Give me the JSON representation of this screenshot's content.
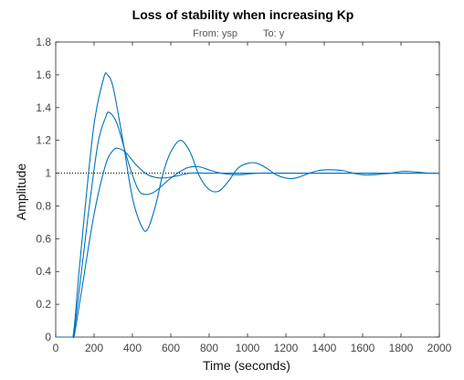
{
  "chart_data": {
    "type": "line",
    "title": "Loss of stability when increasing Kp",
    "subtitle_from": "From: ysp",
    "subtitle_to": "To: y",
    "xlabel": "Time (seconds)",
    "ylabel": "Amplitude",
    "xlim": [
      0,
      2000
    ],
    "ylim": [
      0,
      1.8
    ],
    "xticks": [
      0,
      200,
      400,
      600,
      800,
      1000,
      1200,
      1400,
      1600,
      1800,
      2000
    ],
    "yticks": [
      0,
      0.2,
      0.4,
      0.6,
      0.8,
      1,
      1.2,
      1.4,
      1.6,
      1.8
    ],
    "xtick_labels": [
      "0",
      "200",
      "400",
      "600",
      "800",
      "1000",
      "1200",
      "1400",
      "1600",
      "1800",
      "2000"
    ],
    "ytick_labels": [
      "0",
      "0.2",
      "0.4",
      "0.6",
      "0.8",
      "1",
      "1.2",
      "1.4",
      "1.6",
      "1.8"
    ],
    "reference_line": {
      "y": 1,
      "style": "dotted",
      "color": "#000000"
    },
    "line_color": "#0072BD",
    "grid": false,
    "series": [
      {
        "x": [
          0,
          90,
          100,
          120,
          150,
          200,
          250,
          270,
          300,
          350,
          400,
          450,
          480,
          520,
          560,
          600,
          650,
          700,
          750,
          800,
          850,
          900,
          950,
          1000,
          1050,
          1100,
          1150,
          1200,
          1250,
          1300,
          1350,
          1400,
          1450,
          1500,
          1550,
          1600,
          1650,
          1700,
          1750,
          1800,
          1850,
          1900,
          1950,
          2000
        ],
        "y": [
          0,
          0,
          0.1,
          0.38,
          0.75,
          1.3,
          1.58,
          1.6,
          1.52,
          1.2,
          0.85,
          0.67,
          0.66,
          0.8,
          1.0,
          1.13,
          1.2,
          1.13,
          0.98,
          0.9,
          0.89,
          0.95,
          1.03,
          1.06,
          1.06,
          1.03,
          0.99,
          0.97,
          0.97,
          0.99,
          1.01,
          1.02,
          1.02,
          1.015,
          1.0,
          0.99,
          0.99,
          0.995,
          1.0,
          1.01,
          1.01,
          1.005,
          1.0,
          1.0
        ]
      },
      {
        "x": [
          0,
          90,
          100,
          130,
          170,
          220,
          260,
          280,
          320,
          380,
          430,
          470,
          520,
          600,
          680,
          740,
          800,
          860,
          950,
          1050,
          1200,
          1400,
          1600,
          1800,
          2000
        ],
        "y": [
          0,
          0,
          0.06,
          0.36,
          0.75,
          1.18,
          1.34,
          1.37,
          1.3,
          1.06,
          0.9,
          0.87,
          0.89,
          0.97,
          1.03,
          1.04,
          1.02,
          1.0,
          0.99,
          1.0,
          1.0,
          1.0,
          1.0,
          1.0,
          1.0
        ]
      },
      {
        "x": [
          0,
          90,
          100,
          140,
          200,
          260,
          300,
          330,
          370,
          420,
          480,
          550,
          620,
          700,
          800,
          1000,
          1200,
          1400,
          1600,
          1800,
          2000
        ],
        "y": [
          0,
          0,
          0.03,
          0.32,
          0.75,
          1.05,
          1.14,
          1.15,
          1.12,
          1.05,
          0.99,
          0.97,
          0.98,
          1.0,
          1.0,
          1.0,
          1.0,
          1.0,
          1.0,
          1.0,
          1.0
        ]
      }
    ]
  }
}
